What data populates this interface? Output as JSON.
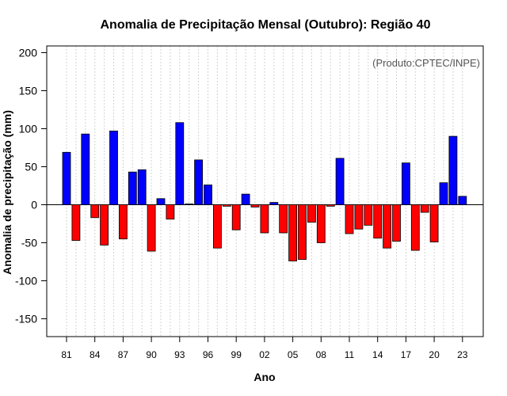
{
  "chart_data": {
    "type": "bar",
    "title": "Anomalia de Precipitação Mensal (Outubro): Região 40",
    "xlabel": "Ano",
    "ylabel": "Anomalia de precipitação (mm)",
    "annotation": "(Produto:CPTEC/INPE)",
    "ylim": [
      -175,
      210
    ],
    "yticks": [
      -150,
      -100,
      -50,
      0,
      50,
      100,
      150,
      200
    ],
    "xtick_labels": [
      "81",
      "84",
      "87",
      "90",
      "93",
      "96",
      "99",
      "02",
      "05",
      "08",
      "11",
      "14",
      "17",
      "20",
      "23"
    ],
    "xtick_years": [
      1981,
      1984,
      1987,
      1990,
      1993,
      1996,
      1999,
      2002,
      2005,
      2008,
      2011,
      2014,
      2017,
      2020,
      2023
    ],
    "years": [
      1981,
      1982,
      1983,
      1984,
      1985,
      1986,
      1987,
      1988,
      1989,
      1990,
      1991,
      1992,
      1993,
      1994,
      1995,
      1996,
      1997,
      1998,
      1999,
      2000,
      2001,
      2002,
      2003,
      2004,
      2005,
      2006,
      2007,
      2008,
      2009,
      2010,
      2011,
      2012,
      2013,
      2014,
      2015,
      2016,
      2017,
      2018,
      2019,
      2020,
      2021,
      2022,
      2023
    ],
    "values": [
      69,
      -47,
      93,
      -17,
      -53,
      97,
      -45,
      43,
      46,
      -61,
      8,
      -19,
      108,
      1,
      59,
      26,
      -57,
      -2,
      -33,
      14,
      -3,
      -37,
      3,
      -37,
      -74,
      -72,
      -23,
      -50,
      -2,
      61,
      -38,
      -32,
      -27,
      -44,
      -57,
      -48,
      55,
      -60,
      -10,
      -49,
      29,
      90,
      11
    ],
    "positive_color": "#0000ff",
    "negative_color": "#ff0000"
  }
}
